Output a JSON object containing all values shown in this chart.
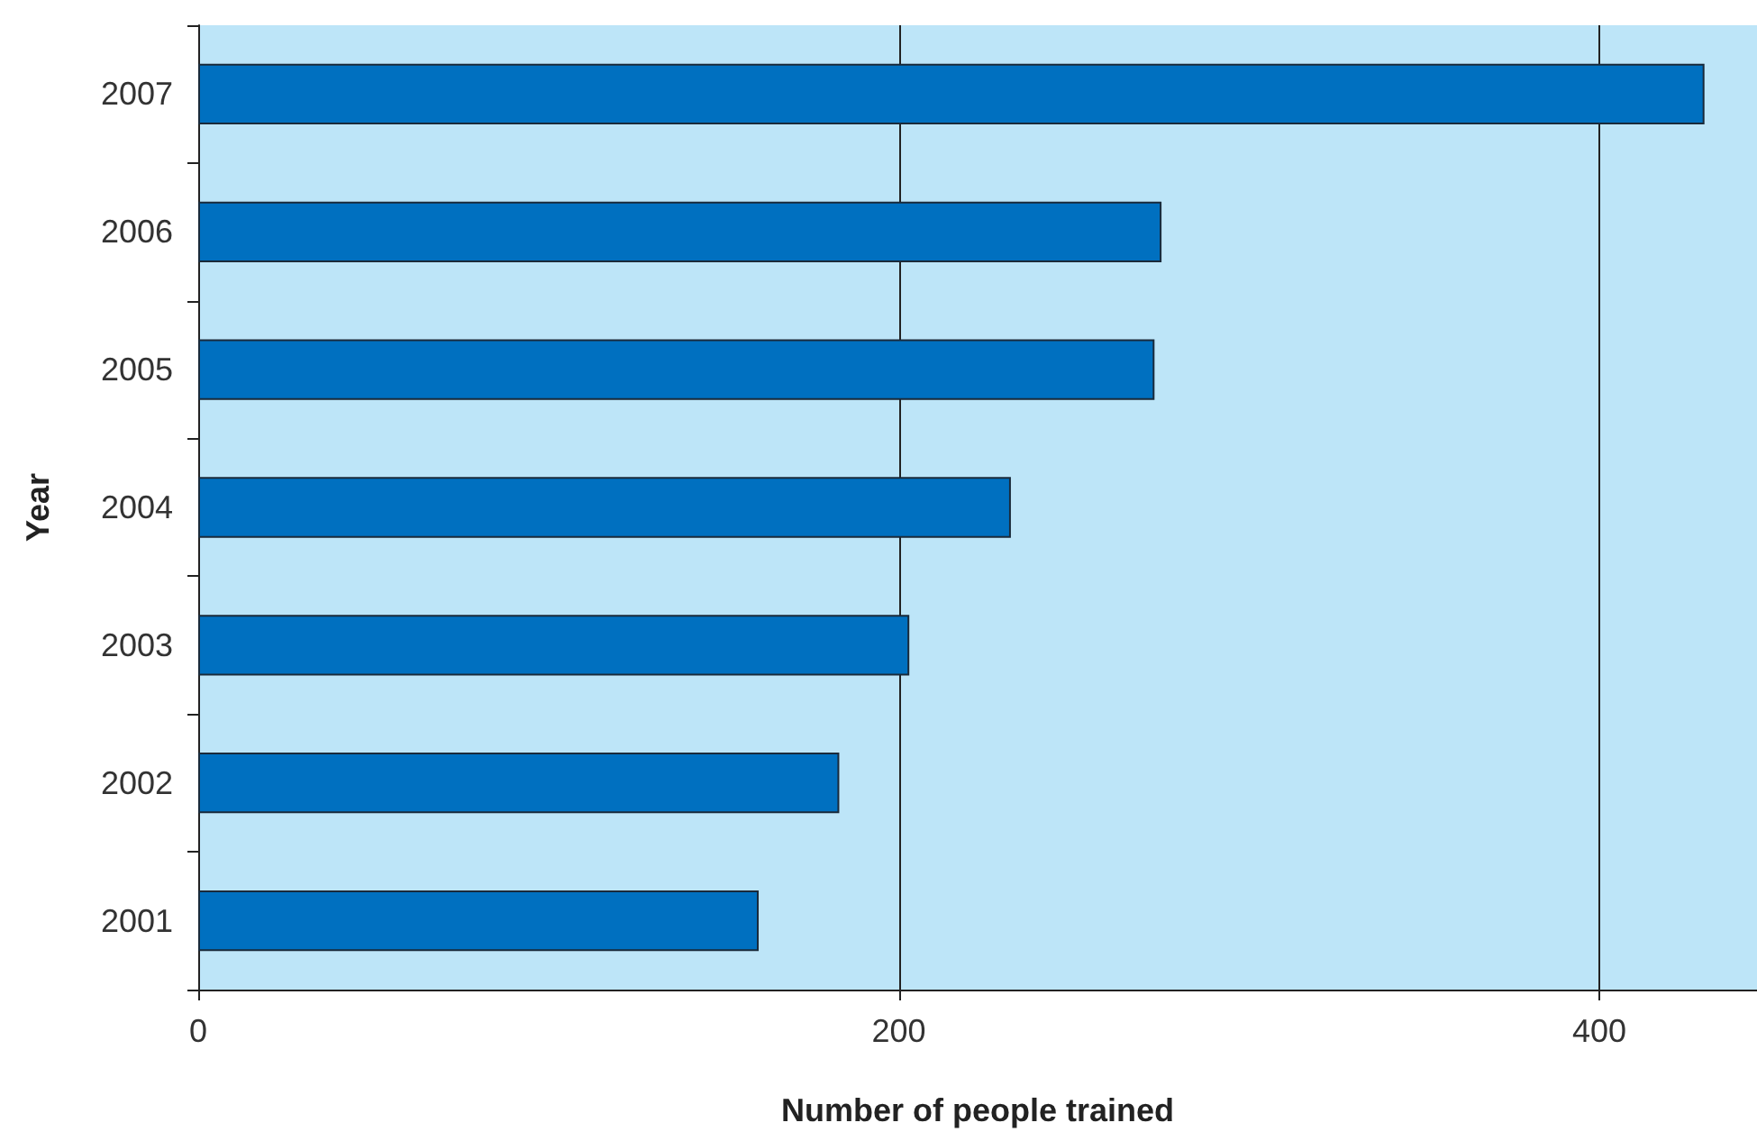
{
  "chart_data": {
    "type": "bar",
    "orientation": "horizontal",
    "xlabel": "Number of people trained",
    "ylabel": "Year",
    "categories": [
      "2007",
      "2006",
      "2005",
      "2004",
      "2003",
      "2002",
      "2001"
    ],
    "values": [
      430,
      275,
      273,
      232,
      203,
      183,
      160
    ],
    "color": "#0070c0",
    "xlim": [
      0,
      445
    ],
    "xticks": [
      0,
      200,
      400
    ],
    "grid": "x"
  }
}
